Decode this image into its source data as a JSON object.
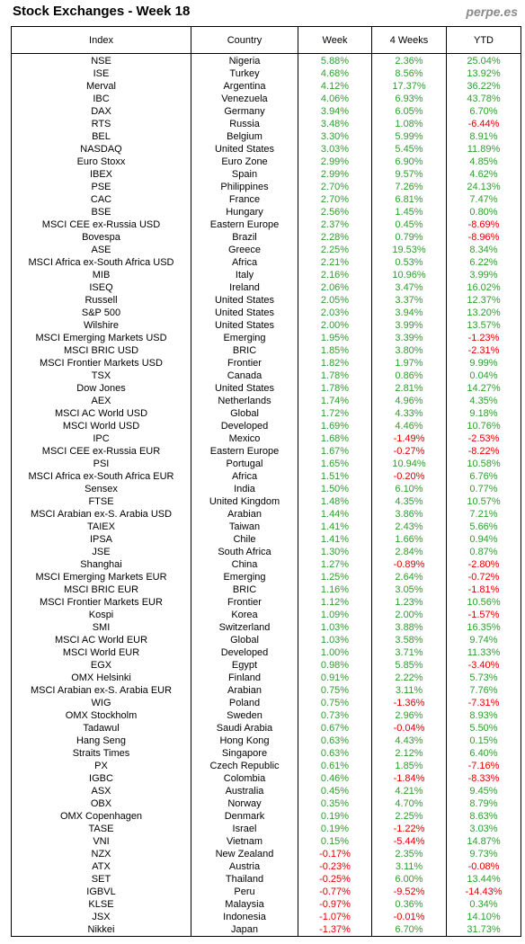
{
  "header": {
    "title": "Stock Exchanges - Week 18",
    "site": "perpe.es"
  },
  "table": {
    "columns": [
      "Index",
      "Country",
      "Week",
      "4 Weeks",
      "YTD"
    ],
    "rows": [
      [
        "NSE",
        "Nigeria",
        "5.88%",
        "2.36%",
        "25.04%"
      ],
      [
        "ISE",
        "Turkey",
        "4.68%",
        "8.56%",
        "13.92%"
      ],
      [
        "Merval",
        "Argentina",
        "4.12%",
        "17.37%",
        "36.22%"
      ],
      [
        "IBC",
        "Venezuela",
        "4.06%",
        "6.93%",
        "43.78%"
      ],
      [
        "DAX",
        "Germany",
        "3.94%",
        "6.05%",
        "6.70%"
      ],
      [
        "RTS",
        "Russia",
        "3.48%",
        "1.08%",
        "-6.44%"
      ],
      [
        "BEL",
        "Belgium",
        "3.30%",
        "5.99%",
        "8.91%"
      ],
      [
        "NASDAQ",
        "United States",
        "3.03%",
        "5.45%",
        "11.89%"
      ],
      [
        "Euro Stoxx",
        "Euro Zone",
        "2.99%",
        "6.90%",
        "4.85%"
      ],
      [
        "IBEX",
        "Spain",
        "2.99%",
        "9.57%",
        "4.62%"
      ],
      [
        "PSE",
        "Philippines",
        "2.70%",
        "7.26%",
        "24.13%"
      ],
      [
        "CAC",
        "France",
        "2.70%",
        "6.81%",
        "7.47%"
      ],
      [
        "BSE",
        "Hungary",
        "2.56%",
        "1.45%",
        "0.80%"
      ],
      [
        "MSCI CEE ex-Russia USD",
        "Eastern Europe",
        "2.37%",
        "0.45%",
        "-8.69%"
      ],
      [
        "Bovespa",
        "Brazil",
        "2.28%",
        "0.79%",
        "-8.96%"
      ],
      [
        "ASE",
        "Greece",
        "2.25%",
        "19.53%",
        "8.34%"
      ],
      [
        "MSCI Africa ex-South Africa USD",
        "Africa",
        "2.21%",
        "0.53%",
        "6.22%"
      ],
      [
        "MIB",
        "Italy",
        "2.16%",
        "10.96%",
        "3.99%"
      ],
      [
        "ISEQ",
        "Ireland",
        "2.06%",
        "3.47%",
        "16.02%"
      ],
      [
        "Russell",
        "United States",
        "2.05%",
        "3.37%",
        "12.37%"
      ],
      [
        "S&P 500",
        "United States",
        "2.03%",
        "3.94%",
        "13.20%"
      ],
      [
        "Wilshire",
        "United States",
        "2.00%",
        "3.99%",
        "13.57%"
      ],
      [
        "MSCI Emerging Markets USD",
        "Emerging",
        "1.95%",
        "3.39%",
        "-1.23%"
      ],
      [
        "MSCI BRIC USD",
        "BRIC",
        "1.85%",
        "3.80%",
        "-2.31%"
      ],
      [
        "MSCI Frontier Markets USD",
        "Frontier",
        "1.82%",
        "1.97%",
        "9.99%"
      ],
      [
        "TSX",
        "Canada",
        "1.78%",
        "0.86%",
        "0.04%"
      ],
      [
        "Dow Jones",
        "United States",
        "1.78%",
        "2.81%",
        "14.27%"
      ],
      [
        "AEX",
        "Netherlands",
        "1.74%",
        "4.96%",
        "4.35%"
      ],
      [
        "MSCI AC World USD",
        "Global",
        "1.72%",
        "4.33%",
        "9.18%"
      ],
      [
        "MSCI World USD",
        "Developed",
        "1.69%",
        "4.46%",
        "10.76%"
      ],
      [
        "IPC",
        "Mexico",
        "1.68%",
        "-1.49%",
        "-2.53%"
      ],
      [
        "MSCI CEE ex-Russia EUR",
        "Eastern Europe",
        "1.67%",
        "-0.27%",
        "-8.22%"
      ],
      [
        "PSI",
        "Portugal",
        "1.65%",
        "10.94%",
        "10.58%"
      ],
      [
        "MSCI Africa ex-South Africa EUR",
        "Africa",
        "1.51%",
        "-0.20%",
        "6.76%"
      ],
      [
        "Sensex",
        "India",
        "1.50%",
        "6.10%",
        "0.77%"
      ],
      [
        "FTSE",
        "United Kingdom",
        "1.48%",
        "4.35%",
        "10.57%"
      ],
      [
        "MSCI Arabian ex-S. Arabia USD",
        "Arabian",
        "1.44%",
        "3.86%",
        "7.21%"
      ],
      [
        "TAIEX",
        "Taiwan",
        "1.41%",
        "2.43%",
        "5.66%"
      ],
      [
        "IPSA",
        "Chile",
        "1.41%",
        "1.66%",
        "0.94%"
      ],
      [
        "JSE",
        "South Africa",
        "1.30%",
        "2.84%",
        "0.87%"
      ],
      [
        "Shanghai",
        "China",
        "1.27%",
        "-0.89%",
        "-2.80%"
      ],
      [
        "MSCI Emerging Markets EUR",
        "Emerging",
        "1.25%",
        "2.64%",
        "-0.72%"
      ],
      [
        "MSCI BRIC EUR",
        "BRIC",
        "1.16%",
        "3.05%",
        "-1.81%"
      ],
      [
        "MSCI Frontier Markets EUR",
        "Frontier",
        "1.12%",
        "1.23%",
        "10.56%"
      ],
      [
        "Kospi",
        "Korea",
        "1.09%",
        "2.00%",
        "-1.57%"
      ],
      [
        "SMI",
        "Switzerland",
        "1.03%",
        "3.88%",
        "16.35%"
      ],
      [
        "MSCI AC World EUR",
        "Global",
        "1.03%",
        "3.58%",
        "9.74%"
      ],
      [
        "MSCI World EUR",
        "Developed",
        "1.00%",
        "3.71%",
        "11.33%"
      ],
      [
        "EGX",
        "Egypt",
        "0.98%",
        "5.85%",
        "-3.40%"
      ],
      [
        "OMX Helsinki",
        "Finland",
        "0.91%",
        "2.22%",
        "5.73%"
      ],
      [
        "MSCI Arabian ex-S. Arabia EUR",
        "Arabian",
        "0.75%",
        "3.11%",
        "7.76%"
      ],
      [
        "WIG",
        "Poland",
        "0.75%",
        "-1.36%",
        "-7.31%"
      ],
      [
        "OMX Stockholm",
        "Sweden",
        "0.73%",
        "2.96%",
        "8.93%"
      ],
      [
        "Tadawul",
        "Saudi Arabia",
        "0.67%",
        "-0.04%",
        "5.50%"
      ],
      [
        "Hang Seng",
        "Hong Kong",
        "0.63%",
        "4.43%",
        "0.15%"
      ],
      [
        "Straits Times",
        "Singapore",
        "0.63%",
        "2.12%",
        "6.40%"
      ],
      [
        "PX",
        "Czech Republic",
        "0.61%",
        "1.85%",
        "-7.16%"
      ],
      [
        "IGBC",
        "Colombia",
        "0.46%",
        "-1.84%",
        "-8.33%"
      ],
      [
        "ASX",
        "Australia",
        "0.45%",
        "4.21%",
        "9.45%"
      ],
      [
        "OBX",
        "Norway",
        "0.35%",
        "4.70%",
        "8.79%"
      ],
      [
        "OMX Copenhagen",
        "Denmark",
        "0.19%",
        "2.25%",
        "8.63%"
      ],
      [
        "TASE",
        "Israel",
        "0.19%",
        "-1.22%",
        "3.03%"
      ],
      [
        "VNI",
        "Vietnam",
        "0.15%",
        "-5.44%",
        "14.87%"
      ],
      [
        "NZX",
        "New Zealand",
        "-0.17%",
        "2.35%",
        "9.73%"
      ],
      [
        "ATX",
        "Austria",
        "-0.23%",
        "3.11%",
        "-0.08%"
      ],
      [
        "SET",
        "Thailand",
        "-0.25%",
        "6.00%",
        "13.44%"
      ],
      [
        "IGBVL",
        "Peru",
        "-0.77%",
        "-9.52%",
        "-14.43%"
      ],
      [
        "KLSE",
        "Malaysia",
        "-0.97%",
        "0.36%",
        "0.34%"
      ],
      [
        "JSX",
        "Indonesia",
        "-1.07%",
        "-0.01%",
        "14.10%"
      ],
      [
        "Nikkei",
        "Japan",
        "-1.37%",
        "6.70%",
        "31.73%"
      ]
    ]
  }
}
